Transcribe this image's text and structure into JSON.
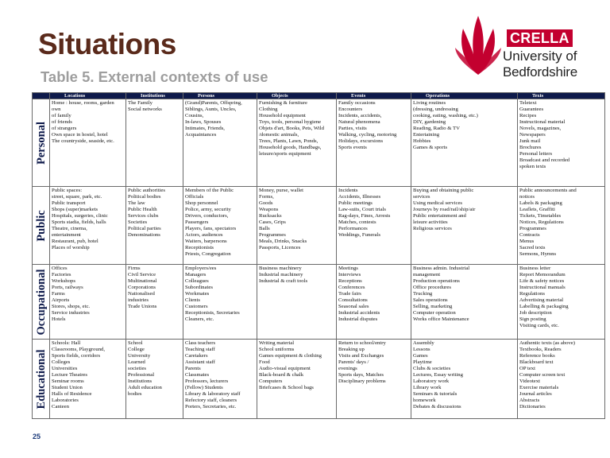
{
  "title": "Situations",
  "subtitle": "Table 5. External contexts of use",
  "logo": {
    "badge": "CRELLA",
    "line1": "University of",
    "line2": "Bedfordshire",
    "mark_color": "#c3002f"
  },
  "page_number": "25",
  "table": {
    "headers": [
      "Locations",
      "Institutions",
      "Persons",
      "Objects",
      "Events",
      "Operations",
      "Texts"
    ],
    "rows": [
      {
        "domain": "Personal",
        "cells": [
          [
            "Home : house, rooms, garden",
            "   own",
            "   of family",
            "   of friends",
            "   of strangers",
            "Own space in hostel, hotel",
            "The countryside, seaside, etc."
          ],
          [
            "The Family",
            "Social networks"
          ],
          [
            "(Grand)Parents, Offspring,",
            "Siblings, Aunts, Uncles,",
            "Cousins,",
            "In-laws, Spouses",
            "Intimates, Friends,",
            "Acquaintances"
          ],
          [
            "Furnishing & furniture",
            "Clothing",
            "Household equipment",
            "Toys, tools, personal hygiene",
            "Objets d'art, Books, Pets, Wild",
            "/domestic animals,",
            "Trees, Plants, Lawn, Ponds,",
            "Household goods, Handbags,",
            "leisure/sports equipment"
          ],
          [
            "Family occasions",
            "Encounters",
            "Incidents, accidents,",
            "Natural phenomena",
            "Parties, visits",
            "Walking, cycling, motoring",
            "Holidays, excursions",
            "Sports events"
          ],
          [
            "Living routines",
            "(dressing, undressing",
            "cooking, eating, washing, etc.)",
            "DIY, gardening",
            "Reading, Radio & TV",
            "Entertaining",
            "Hobbies",
            "Games & sports"
          ],
          [
            "Teletext",
            "Guarantees",
            "Recipes",
            "Instructional material",
            "Novels, magazines,",
            "Newspapers",
            "Junk mail",
            "Brochures",
            "Personal letters",
            "Broadcast and recorded",
            "spoken texts"
          ]
        ]
      },
      {
        "domain": "Public",
        "cells": [
          [
            "Public spaces:",
            "street, square, park, etc.",
            "Public transport",
            "Shops (super)markets",
            "Hospitals, surgeries, clinic",
            "Sports stadia, fields, halls",
            "Theatre, cinema,",
            "entertainment",
            "Restaurant, pub, hotel",
            "Places of worship"
          ],
          [
            "Public authorities",
            "Political bodies",
            "The law",
            "Public Health",
            "Services clubs",
            "Societies",
            "Political parties",
            "Denominations"
          ],
          [
            "Members of the Public",
            "Officials",
            "Shop personnel",
            "Police, army, security",
            "Drivers, conductors,",
            "Passengers",
            "Players, fans, spectators",
            "Actors, audiences",
            "Waiters, barpersons",
            "Receptionists",
            "Priests, Congregation"
          ],
          [
            "Money, purse, wallet",
            "Forms,",
            "Goods",
            "Weapons",
            "Rucksacks",
            "Cases, Grips",
            "Balls",
            "Programmes",
            "Meals, Drinks, Snacks",
            "Passports, Licences"
          ],
          [
            "Incidents",
            "Accidents, Illnesses",
            "Public meetings",
            "Law-suits, Court trials",
            "Rag-days, Fines, Arrests",
            "Matches, contests",
            "Performances",
            "Weddings, Funerals"
          ],
          [
            "Buying and obtaining public",
            "services",
            "Using medical services",
            "Journeys by road/rail/ship/air",
            "Public entertainment and",
            "leisure activities",
            "Religious services"
          ],
          [
            "Public announcements and",
            "notices",
            "Labels & packaging",
            "Leaflets, Graffiti",
            "Tickets, Timetables",
            "Notices, Regulations",
            "Programmes",
            "Contracts",
            "Menus",
            "Sacred texts",
            "Sermons, Hymns"
          ]
        ]
      },
      {
        "domain": "Occupational",
        "cells": [
          [
            "Offices",
            "Factories",
            "Workshops",
            "Ports, railways",
            "Farms",
            "Airports",
            "Stores, shops, etc.",
            "Service industries",
            "Hotels"
          ],
          [
            "Firms",
            "Civil Service",
            "Multinational",
            "Corporations",
            "Nationalised",
            "industries",
            "Trade Unions"
          ],
          [
            "Employers/ees",
            "Managers",
            "Colleagues",
            "Subordinates",
            "Workmates",
            "Clients",
            "Customers",
            "Receptionists, Secretaries",
            "Cleaners, etc."
          ],
          [
            "Business machinery",
            "Industrial machinery",
            "Industrial & craft tools"
          ],
          [
            "Meetings",
            "Interviews",
            "Receptions",
            "Conferences",
            "Trade fairs",
            "Consultations",
            "Seasonal sales",
            "Industrial accidents",
            "Industrial disputes"
          ],
          [
            "Business admin. Industrial",
            "management",
            "Production operations",
            "Office procedures",
            "Trucking",
            "Sales operations",
            "Selling, marketing",
            "Computer operation",
            "Works office Maintenance"
          ],
          [
            "Business letter",
            "Report Memorandum",
            "Life & safety notices",
            "Instructional manuals",
            "Regulations",
            "Advertising material",
            "Labelling & packaging",
            "Job description",
            "Sign posting",
            "Visiting cards, etc."
          ]
        ]
      },
      {
        "domain": "Educational",
        "cells": [
          [
            "Schools: Hall",
            "Classrooms, Playground,",
            "Sports fields, corridors",
            "Colleges",
            "Universities",
            "Lecture Theatres",
            "Seminar rooms",
            "Student Union",
            "Halls of Residence",
            "Laboratories",
            "Canteen"
          ],
          [
            "School",
            "College",
            "University",
            "Learned",
            "societies",
            "Professional",
            "Institutions",
            "Adult education",
            "bodies"
          ],
          [
            "Class teachers",
            "Teaching staff",
            "Caretakers",
            "Assistant staff",
            "Parents",
            "Classmates",
            "Professors, lecturers",
            "(Fellow) Students",
            "Library & laboratory staff",
            "Refectory staff, cleaners",
            "Porters, Secretaries, etc."
          ],
          [
            "Writing material",
            "School uniforms",
            "Games equipment & clothing",
            "Food",
            "Audio-visual equipment",
            "Black-board & chalk",
            "Computers",
            "Briefcases & School bags"
          ],
          [
            "Return to school/entry",
            "Breaking up",
            "Visits and Exchanges",
            "Parents' days /",
            "evenings",
            "Sports days, Matches",
            "Disciplinary problems"
          ],
          [
            "Assembly",
            "Lessons",
            "Games",
            "Playtime",
            "Clubs & societies",
            "Lectures, Essay writing",
            "Laboratory work",
            "Library work",
            "Seminars & tutorials",
            "homework",
            "Debates & discussions"
          ],
          [
            "Authentic texts (as above)",
            "Textbooks, Readers",
            "Reference books",
            "Blackboard text",
            "OP text",
            "Computer screen text",
            "Videotext",
            "Exercise materials",
            "Journal articles",
            "Abstracts",
            "Dictionaries"
          ]
        ]
      }
    ]
  }
}
